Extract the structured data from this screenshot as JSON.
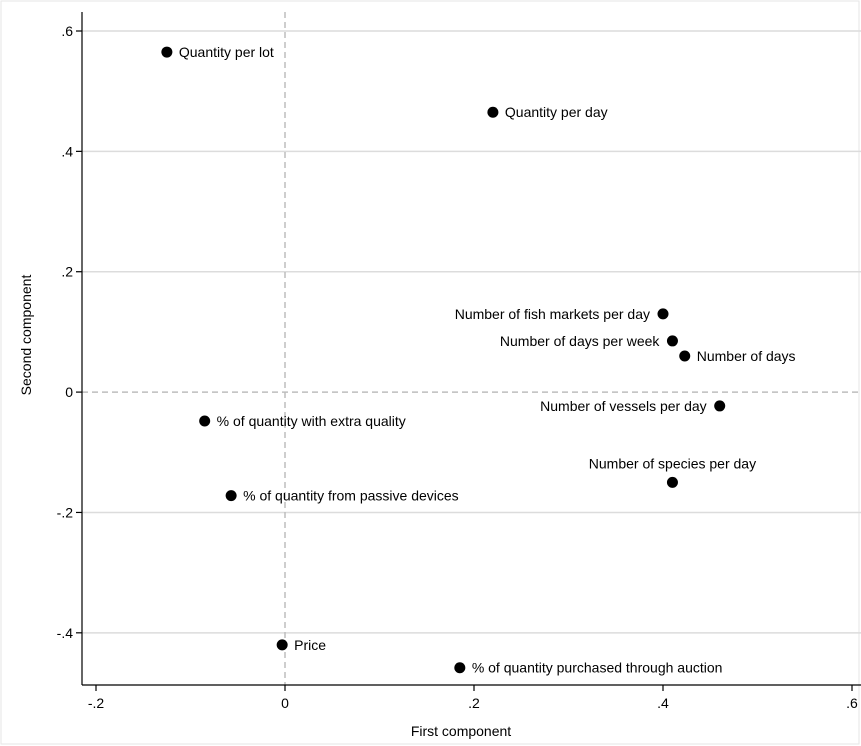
{
  "chart_data": {
    "type": "scatter",
    "xlabel": "First component",
    "ylabel": "Second component",
    "xlim": [
      -0.2,
      0.6
    ],
    "ylim": [
      -0.5,
      0.6
    ],
    "x_ticks": [
      {
        "value": -0.2,
        "label": "-.2"
      },
      {
        "value": 0,
        "label": "0"
      },
      {
        "value": 0.2,
        "label": ".2"
      },
      {
        "value": 0.4,
        "label": ".4"
      },
      {
        "value": 0.6,
        "label": ".6"
      }
    ],
    "y_ticks": [
      {
        "value": -0.4,
        "label": "-.4"
      },
      {
        "value": -0.2,
        "label": "-.2"
      },
      {
        "value": 0,
        "label": "0"
      },
      {
        "value": 0.2,
        "label": ".2"
      },
      {
        "value": 0.4,
        "label": ".4"
      },
      {
        "value": 0.6,
        "label": ".6"
      }
    ],
    "grid": true,
    "reference_lines": {
      "x": 0,
      "y": 0
    },
    "colors": {
      "point": "#000000",
      "grid": "#dcdcdc",
      "reference": "#bdbdbd",
      "axis": "#000000"
    },
    "points": [
      {
        "label": "Quantity per lot",
        "x": -0.125,
        "y": 0.565,
        "label_side": "right"
      },
      {
        "label": "Quantity per day",
        "x": 0.22,
        "y": 0.465,
        "label_side": "right"
      },
      {
        "label": "Number of fish markets per day",
        "x": 0.4,
        "y": 0.13,
        "label_side": "left"
      },
      {
        "label": "Number of days per week",
        "x": 0.41,
        "y": 0.085,
        "label_side": "left"
      },
      {
        "label": "Number of days",
        "x": 0.423,
        "y": 0.06,
        "label_side": "right"
      },
      {
        "label": "Number of vessels per day",
        "x": 0.46,
        "y": -0.023,
        "label_side": "left"
      },
      {
        "label": "% of quantity with extra quality",
        "x": -0.085,
        "y": -0.048,
        "label_side": "right"
      },
      {
        "label": "Number of species per day",
        "x": 0.41,
        "y": -0.15,
        "label_side": "above"
      },
      {
        "label": "% of quantity from passive devices",
        "x": -0.057,
        "y": -0.172,
        "label_side": "right"
      },
      {
        "label": "Price",
        "x": -0.003,
        "y": -0.42,
        "label_side": "right"
      },
      {
        "label": "% of quantity purchased through auction",
        "x": 0.185,
        "y": -0.458,
        "label_side": "right"
      }
    ]
  }
}
